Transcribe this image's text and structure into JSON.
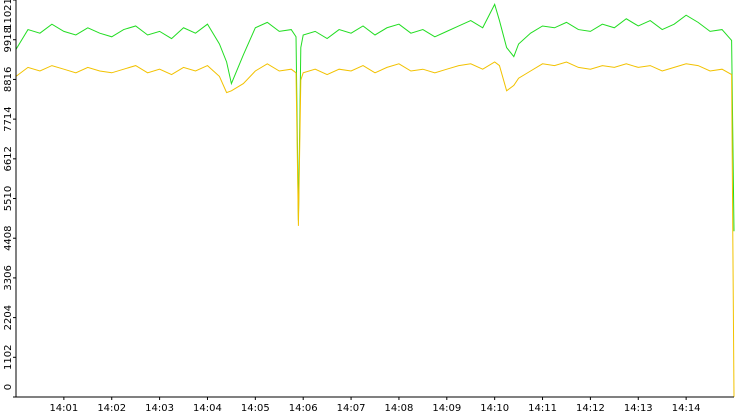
{
  "chart_data": {
    "type": "line",
    "x": [
      0,
      0.25,
      0.5,
      0.75,
      1,
      1.25,
      1.5,
      1.75,
      2,
      2.25,
      2.5,
      2.75,
      3,
      3.25,
      3.5,
      3.75,
      4,
      4.25,
      4.4,
      4.5,
      4.75,
      5,
      5.25,
      5.5,
      5.75,
      5.85,
      5.9,
      5.95,
      6,
      6.25,
      6.5,
      6.75,
      7,
      7.25,
      7.5,
      7.75,
      8,
      8.25,
      8.5,
      8.75,
      9,
      9.25,
      9.5,
      9.75,
      10,
      10.1,
      10.25,
      10.4,
      10.5,
      10.75,
      11,
      11.25,
      11.5,
      11.75,
      12,
      12.25,
      12.5,
      12.75,
      13,
      13.25,
      13.5,
      13.75,
      14,
      14.25,
      14.5,
      14.75,
      14.95,
      15
    ],
    "series": [
      {
        "color": "#22dd22",
        "values": [
          9650,
          10200,
          10100,
          10350,
          10150,
          10050,
          10250,
          10100,
          10000,
          10200,
          10300,
          10050,
          10150,
          9950,
          10250,
          10100,
          10350,
          9800,
          9300,
          8700,
          9500,
          10250,
          10400,
          10150,
          10200,
          10000,
          4900,
          9700,
          10050,
          10150,
          9950,
          10200,
          10100,
          10300,
          10050,
          10250,
          10350,
          10100,
          10200,
          10000,
          10150,
          10300,
          10450,
          10250,
          10900,
          10450,
          9700,
          9450,
          9800,
          10100,
          10300,
          10250,
          10400,
          10200,
          10150,
          10350,
          10250,
          10500,
          10300,
          10450,
          10200,
          10350,
          10600,
          10400,
          10150,
          10200,
          9900,
          4600
        ]
      },
      {
        "color": "#f2c200",
        "values": [
          8900,
          9150,
          9050,
          9200,
          9100,
          9000,
          9150,
          9050,
          9000,
          9100,
          9200,
          9000,
          9100,
          8950,
          9150,
          9050,
          9200,
          8900,
          8450,
          8500,
          8700,
          9050,
          9250,
          9050,
          9100,
          9000,
          4750,
          8800,
          9000,
          9100,
          8950,
          9100,
          9050,
          9200,
          9000,
          9150,
          9250,
          9050,
          9100,
          9000,
          9100,
          9200,
          9250,
          9100,
          9300,
          9200,
          8500,
          8650,
          8850,
          9050,
          9250,
          9200,
          9300,
          9150,
          9100,
          9200,
          9150,
          9250,
          9150,
          9200,
          9050,
          9150,
          9250,
          9200,
          9050,
          9100,
          8950,
          0
        ]
      }
    ],
    "xlim": [
      0,
      15
    ],
    "xticks": [
      {
        "value": 1,
        "label": "14:01"
      },
      {
        "value": 2,
        "label": "14:02"
      },
      {
        "value": 3,
        "label": "14:03"
      },
      {
        "value": 4,
        "label": "14:04"
      },
      {
        "value": 5,
        "label": "14:05"
      },
      {
        "value": 6,
        "label": "14:06"
      },
      {
        "value": 7,
        "label": "14:07"
      },
      {
        "value": 8,
        "label": "14:08"
      },
      {
        "value": 9,
        "label": "14:09"
      },
      {
        "value": 10,
        "label": "14:10"
      },
      {
        "value": 11,
        "label": "14:11"
      },
      {
        "value": 12,
        "label": "14:12"
      },
      {
        "value": 13,
        "label": "14:13"
      },
      {
        "value": 14,
        "label": "14:14"
      }
    ],
    "ylim": [
      0,
      11021
    ],
    "yticks": [
      0,
      1102,
      2204,
      3306,
      4408,
      5510,
      6612,
      7714,
      8816,
      9918,
      11021
    ]
  }
}
